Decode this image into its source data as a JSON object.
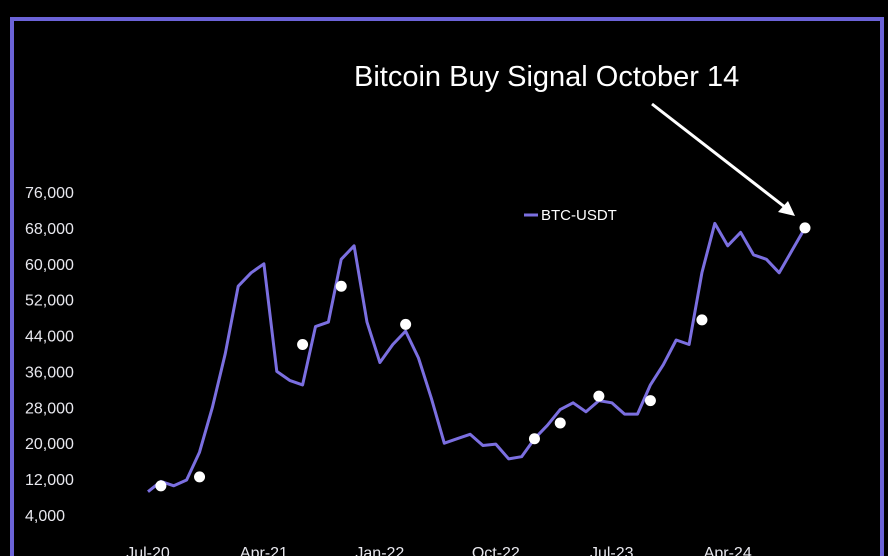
{
  "annotation": {
    "text": "Bitcoin Buy Signal October 14"
  },
  "colors": {
    "background": "#000000",
    "frame": "#6b63d8",
    "line": "#7b6fe0",
    "signal_marker": "#ffffff",
    "text": "#ffffff"
  },
  "chart_data": {
    "type": "line",
    "title": "",
    "xlabel": "",
    "ylabel": "",
    "ylim": [
      4000,
      76000
    ],
    "yticks": [
      4000,
      12000,
      20000,
      28000,
      36000,
      44000,
      52000,
      60000,
      68000,
      76000
    ],
    "ytick_labels": [
      "4,000",
      "12,000",
      "20,000",
      "28,000",
      "36,000",
      "44,000",
      "52,000",
      "60,000",
      "68,000",
      "76,000"
    ],
    "xlim": [
      "2020-07",
      "2024-10"
    ],
    "xticks": [
      "2020-07",
      "2021-04",
      "2022-01",
      "2022-10",
      "2023-07",
      "2024-04"
    ],
    "xtick_labels": [
      "Jul-20",
      "Apr-21",
      "Jan-22",
      "Oct-22",
      "Jul-23",
      "Apr-24"
    ],
    "grid": false,
    "legend": {
      "position": "top-right",
      "entries": [
        "BTC-USDT"
      ]
    },
    "series": [
      {
        "name": "BTC-USDT",
        "x": [
          "2020-07",
          "2020-08",
          "2020-09",
          "2020-10",
          "2020-11",
          "2020-12",
          "2021-01",
          "2021-02",
          "2021-03",
          "2021-04",
          "2021-05",
          "2021-06",
          "2021-07",
          "2021-08",
          "2021-09",
          "2021-10",
          "2021-11",
          "2021-12",
          "2022-01",
          "2022-02",
          "2022-03",
          "2022-04",
          "2022-05",
          "2022-06",
          "2022-07",
          "2022-08",
          "2022-09",
          "2022-10",
          "2022-11",
          "2022-12",
          "2023-01",
          "2023-02",
          "2023-03",
          "2023-04",
          "2023-05",
          "2023-06",
          "2023-07",
          "2023-08",
          "2023-09",
          "2023-10",
          "2023-11",
          "2023-12",
          "2024-01",
          "2024-02",
          "2024-03",
          "2024-04",
          "2024-05",
          "2024-06",
          "2024-07",
          "2024-08",
          "2024-09",
          "2024-10"
        ],
        "y": [
          9200,
          11500,
          10500,
          11800,
          18000,
          28000,
          40000,
          55000,
          58000,
          60000,
          36000,
          34000,
          33000,
          46000,
          47000,
          61000,
          64000,
          47000,
          38000,
          42000,
          45000,
          39000,
          30000,
          20000,
          21000,
          22000,
          19500,
          19800,
          16500,
          17000,
          21000,
          24000,
          27500,
          29000,
          27000,
          29500,
          29000,
          26500,
          26500,
          33000,
          37500,
          43000,
          42000,
          58000,
          69000,
          64000,
          67000,
          62000,
          61000,
          58000,
          63000,
          68000
        ]
      }
    ],
    "signals": [
      {
        "x": "2020-08",
        "y": 10500
      },
      {
        "x": "2020-11",
        "y": 12500
      },
      {
        "x": "2021-07",
        "y": 42000
      },
      {
        "x": "2021-10",
        "y": 55000
      },
      {
        "x": "2022-03",
        "y": 46500
      },
      {
        "x": "2023-01",
        "y": 21000
      },
      {
        "x": "2023-03",
        "y": 24500
      },
      {
        "x": "2023-06",
        "y": 30500
      },
      {
        "x": "2023-10",
        "y": 29500
      },
      {
        "x": "2024-02",
        "y": 47500
      },
      {
        "x": "2024-10",
        "y": 68000
      }
    ]
  }
}
